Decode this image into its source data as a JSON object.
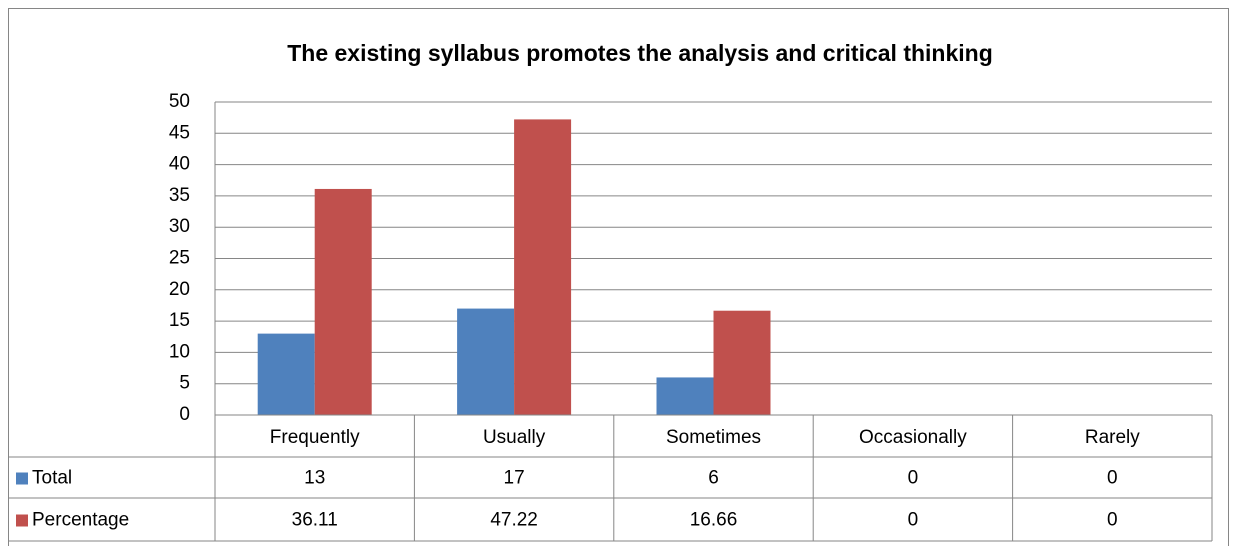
{
  "chart_data": {
    "type": "bar",
    "title": "The existing syllabus promotes the analysis and critical thinking",
    "categories": [
      "Frequently",
      "Usually",
      "Sometimes",
      "Occasionally",
      "Rarely"
    ],
    "series": [
      {
        "name": "Total",
        "color": "#4f81bd",
        "values": [
          13,
          17,
          6,
          0,
          0
        ]
      },
      {
        "name": "Percentage",
        "color": "#c0504d",
        "values": [
          36.11,
          47.22,
          16.66,
          0,
          0
        ]
      }
    ],
    "ylim": [
      0,
      50
    ],
    "yticks": [
      0,
      5,
      10,
      15,
      20,
      25,
      30,
      35,
      40,
      45,
      50
    ],
    "grid": true
  }
}
